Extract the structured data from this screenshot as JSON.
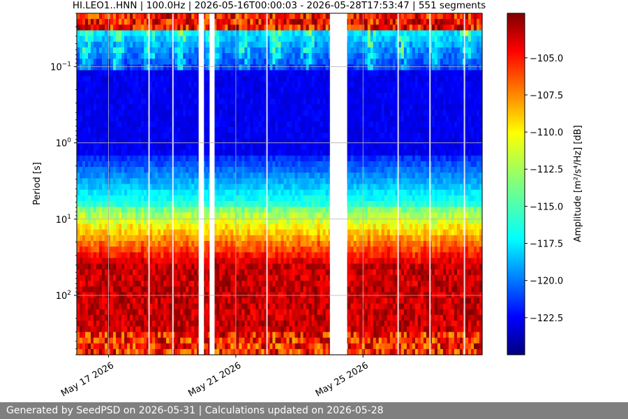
{
  "chart_data": {
    "type": "heatmap",
    "title": "HI.LEO1..HNN | 100.0Hz | 2026-05-16T00:00:03 - 2026-05-28T17:53:47 | 551 segments",
    "xlabel": "",
    "ylabel": "Period [s]",
    "x_range": [
      "2026-05-16T00:00:03",
      "2026-05-28T17:53:47"
    ],
    "x_ticks": [
      {
        "value": "2026-05-17",
        "label": "May 17 2026"
      },
      {
        "value": "2026-05-21",
        "label": "May 21 2026"
      },
      {
        "value": "2026-05-25",
        "label": "May 25 2026"
      }
    ],
    "y_scale": "log",
    "y_inverted": true,
    "y_range": [
      0.02,
      600
    ],
    "y_ticks": [
      {
        "value": 0.1,
        "base": "10",
        "exp": "−1"
      },
      {
        "value": 1,
        "base": "10",
        "exp": "0"
      },
      {
        "value": 10,
        "base": "10",
        "exp": "1"
      },
      {
        "value": 100,
        "base": "10",
        "exp": "2"
      }
    ],
    "grid": true,
    "gaps": [
      {
        "start": "2026-05-19T20:00:00",
        "end": "2026-05-20T00:00:00"
      },
      {
        "start": "2026-05-20T04:15:00",
        "end": "2026-05-20T08:00:00"
      },
      {
        "start": "2026-05-23T23:00:00",
        "end": "2026-05-24T12:00:00"
      }
    ],
    "spikes": [
      "2026-05-18T06:00:00",
      "2026-05-19T00:00:00",
      "2026-05-21T23:00:00",
      "2026-05-26T02:00:00",
      "2026-05-27T02:00:00",
      "2026-05-28T04:00:00"
    ],
    "colorbar": {
      "label": "Amplitude [m²/s⁴/Hz] [dB]",
      "colormap": "jet",
      "range": [
        -125,
        -102
      ],
      "ticks": [
        "−105.0",
        "−107.5",
        "−110.0",
        "−112.5",
        "−115.0",
        "−117.5",
        "−120.0",
        "−122.5"
      ],
      "tick_values": [
        -105,
        -107.5,
        -110,
        -112.5,
        -115,
        -117.5,
        -120,
        -122.5
      ]
    }
  },
  "footer": {
    "text": "Generated by SeedPSD on 2026-05-31 | Calculations updated on 2026-05-28"
  }
}
